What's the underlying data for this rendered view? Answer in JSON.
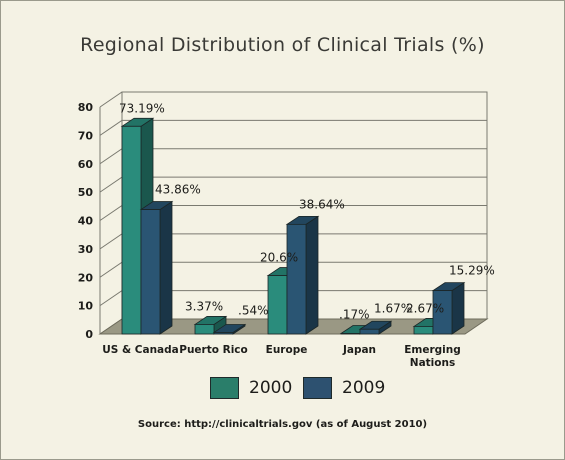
{
  "chart_data": {
    "type": "bar",
    "title": "Regional Distribution of Clinical Trials (%)",
    "categories": [
      "US & Canada",
      "Puerto Rico",
      "Europe",
      "Japan",
      "Emerging Nations"
    ],
    "series": [
      {
        "name": "2000",
        "values": [
          73.19,
          3.37,
          20.6,
          0.17,
          2.67
        ],
        "labels": [
          "73.19%",
          "3.37%",
          "20.6%",
          ".17%",
          "2.67%"
        ],
        "color": "#2a8c7c"
      },
      {
        "name": "2009",
        "values": [
          43.86,
          0.54,
          38.64,
          1.67,
          15.29
        ],
        "labels": [
          "43.86%",
          ".54%",
          "38.64%",
          "1.67%",
          "15.29%"
        ],
        "color": "#2a5573"
      }
    ],
    "yticks": [
      "0",
      "10",
      "20",
      "30",
      "40",
      "50",
      "60",
      "70",
      "80"
    ],
    "ylim": [
      0,
      80
    ],
    "grid": true,
    "legend": "bottom",
    "source": "Source: http://clinicaltrials.gov (as of August 2010)",
    "colors": {
      "background": "#f4f2e4",
      "floor": "#9a9884",
      "grid": "#7a7a70"
    }
  }
}
